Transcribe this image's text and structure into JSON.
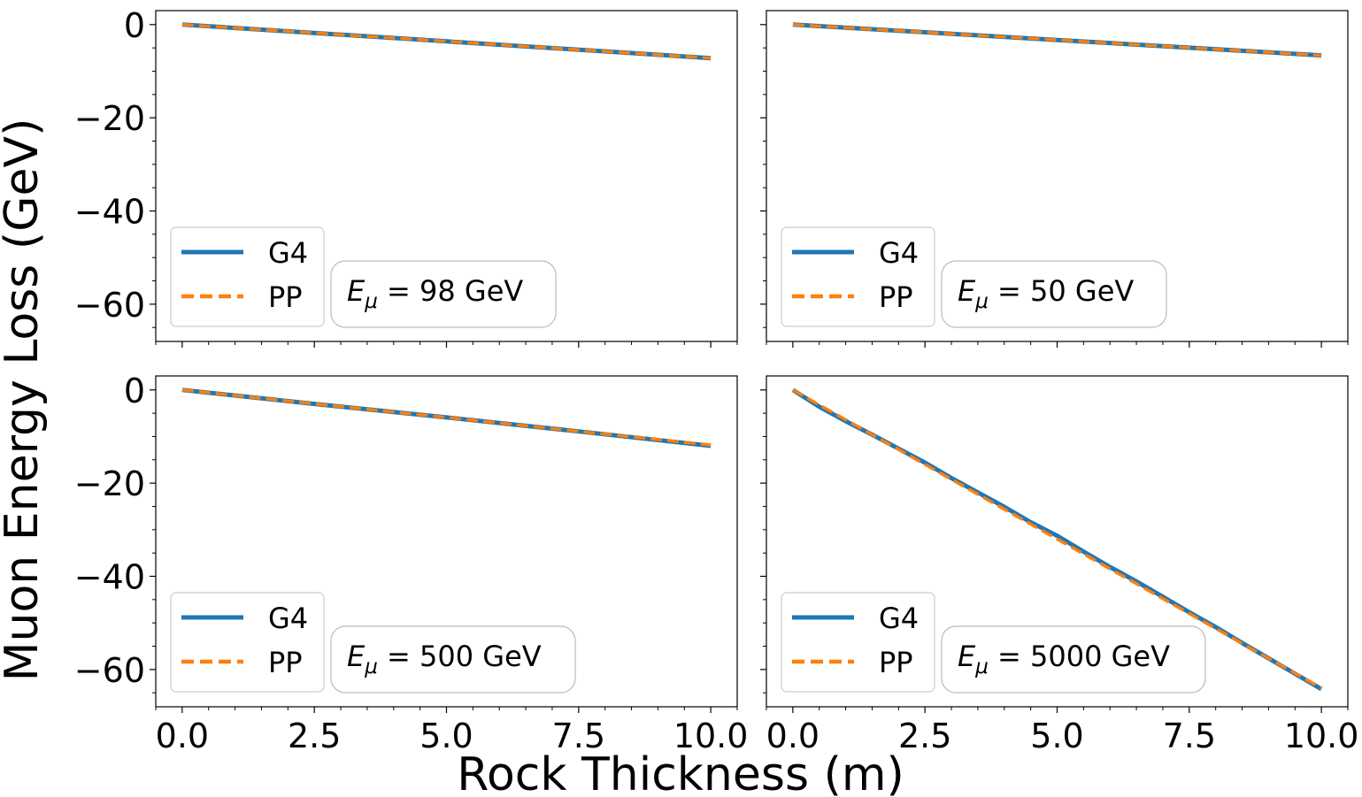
{
  "figure": {
    "xlabel": "Rock Thickness (m)",
    "ylabel": "Muon Energy Loss (GeV)"
  },
  "colors": {
    "G4": "#1f77b4",
    "PP": "#ff7f0e"
  },
  "chart_data": [
    {
      "type": "line",
      "annotation_symbol": "E",
      "annotation_sub": "μ",
      "annotation_text": " = 98 GeV",
      "xlim": [
        -0.5,
        10.5
      ],
      "ylim": [
        -68,
        3
      ],
      "xticks": [
        "0.0",
        "2.5",
        "5.0",
        "7.5",
        "10.0"
      ],
      "yticks": [
        "0",
        "−20",
        "−40",
        "−60"
      ],
      "show_xticklabels": false,
      "show_yticklabels": true,
      "legend": {
        "placement": "lower-left",
        "entries": [
          "G4",
          "PP"
        ]
      },
      "series": [
        {
          "name": "G4",
          "style": "solid",
          "x": [
            0,
            10
          ],
          "y": [
            0,
            -7.2
          ]
        },
        {
          "name": "PP",
          "style": "dashed",
          "x": [
            0,
            10
          ],
          "y": [
            0,
            -7.2
          ]
        }
      ]
    },
    {
      "type": "line",
      "annotation_symbol": "E",
      "annotation_sub": "μ",
      "annotation_text": " = 50 GeV",
      "xlim": [
        -0.5,
        10.5
      ],
      "ylim": [
        -68,
        3
      ],
      "xticks": [
        "0.0",
        "2.5",
        "5.0",
        "7.5",
        "10.0"
      ],
      "yticks": [
        "0",
        "−20",
        "−40",
        "−60"
      ],
      "show_xticklabels": false,
      "show_yticklabels": false,
      "legend": {
        "placement": "lower-left",
        "entries": [
          "G4",
          "PP"
        ]
      },
      "series": [
        {
          "name": "G4",
          "style": "solid",
          "x": [
            0,
            10
          ],
          "y": [
            0,
            -6.6
          ]
        },
        {
          "name": "PP",
          "style": "dashed",
          "x": [
            0,
            10
          ],
          "y": [
            0,
            -6.6
          ]
        }
      ]
    },
    {
      "type": "line",
      "annotation_symbol": "E",
      "annotation_sub": "μ",
      "annotation_text": " = 500 GeV",
      "xlim": [
        -0.5,
        10.5
      ],
      "ylim": [
        -68,
        3
      ],
      "xticks": [
        "0.0",
        "2.5",
        "5.0",
        "7.5",
        "10.0"
      ],
      "yticks": [
        "0",
        "−20",
        "−40",
        "−60"
      ],
      "show_xticklabels": true,
      "show_yticklabels": true,
      "legend": {
        "placement": "lower-left",
        "entries": [
          "G4",
          "PP"
        ]
      },
      "series": [
        {
          "name": "G4",
          "style": "solid",
          "x": [
            0,
            2.5,
            5,
            7.5,
            10
          ],
          "y": [
            0,
            -3.0,
            -5.9,
            -8.9,
            -12.0
          ]
        },
        {
          "name": "PP",
          "style": "dashed",
          "x": [
            0,
            2.5,
            5,
            7.5,
            10
          ],
          "y": [
            0,
            -3.0,
            -5.9,
            -8.9,
            -11.8
          ]
        }
      ]
    },
    {
      "type": "line",
      "annotation_symbol": "E",
      "annotation_sub": "μ",
      "annotation_text": " = 5000 GeV",
      "xlim": [
        -0.5,
        10.5
      ],
      "ylim": [
        -68,
        3
      ],
      "xticks": [
        "0.0",
        "2.5",
        "5.0",
        "7.5",
        "10.0"
      ],
      "yticks": [
        "0",
        "−20",
        "−40",
        "−60"
      ],
      "show_xticklabels": true,
      "show_yticklabels": false,
      "legend": {
        "placement": "lower-left",
        "entries": [
          "G4",
          "PP"
        ]
      },
      "series": [
        {
          "name": "G4",
          "style": "solid",
          "x": [
            0,
            0.5,
            1,
            1.5,
            2,
            2.5,
            3,
            3.5,
            4,
            4.5,
            5,
            5.5,
            6,
            6.5,
            7,
            7.5,
            8,
            8.5,
            9,
            9.5,
            10
          ],
          "y": [
            0,
            -3.6,
            -6.7,
            -9.6,
            -12.6,
            -15.6,
            -18.9,
            -22.0,
            -25.1,
            -28.4,
            -31.3,
            -34.7,
            -38.0,
            -41.1,
            -44.4,
            -47.7,
            -50.9,
            -54.3,
            -57.6,
            -60.9,
            -64.2
          ]
        },
        {
          "name": "PP",
          "style": "dashed",
          "x": [
            0,
            0.5,
            1,
            1.5,
            2,
            2.5,
            3,
            3.5,
            4,
            4.5,
            5,
            5.5,
            6,
            6.5,
            7,
            7.5,
            8,
            8.5,
            9,
            9.5,
            10
          ],
          "y": [
            0,
            -3.2,
            -6.4,
            -9.6,
            -12.8,
            -16.0,
            -19.2,
            -22.4,
            -25.6,
            -28.8,
            -32.0,
            -35.2,
            -38.4,
            -41.6,
            -44.8,
            -48.0,
            -51.2,
            -54.4,
            -57.6,
            -60.8,
            -64.0
          ]
        }
      ]
    }
  ]
}
